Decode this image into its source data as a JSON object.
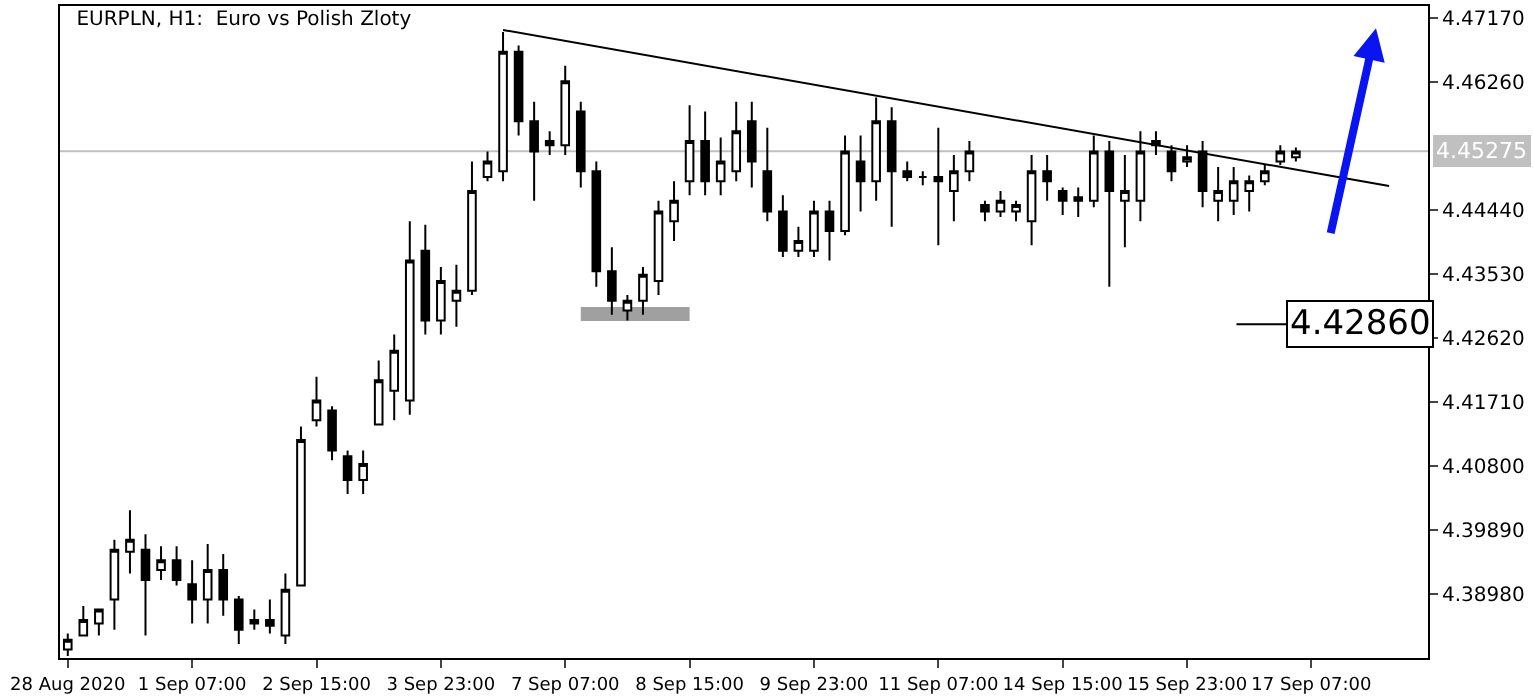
{
  "chart_data": {
    "type": "candlestick",
    "title": "EURPLN, H1:  Euro vs Polish Zloty",
    "categories": [
      "28 Aug 2020",
      null,
      null,
      null,
      null,
      null,
      null,
      null,
      "1 Sep 07:00",
      null,
      null,
      null,
      null,
      null,
      null,
      null,
      "2 Sep 15:00",
      null,
      null,
      null,
      null,
      null,
      null,
      null,
      "3 Sep 23:00",
      null,
      null,
      null,
      null,
      null,
      null,
      null,
      "7 Sep 07:00",
      null,
      null,
      null,
      null,
      null,
      null,
      null,
      "8 Sep 15:00",
      null,
      null,
      null,
      null,
      null,
      null,
      null,
      "9 Sep 23:00",
      null,
      null,
      null,
      null,
      null,
      null,
      null,
      "11 Sep 07:00",
      null,
      null,
      null,
      null,
      null,
      null,
      null,
      "14 Sep 15:00",
      null,
      null,
      null,
      null,
      null,
      null,
      null,
      "15 Sep 23:00",
      null,
      null,
      null,
      null,
      null,
      null,
      null,
      "17 Sep 07:00",
      null,
      null,
      null,
      null,
      null,
      null,
      null
    ],
    "ohlc": [
      [
        4.3819,
        4.3842,
        4.381,
        4.3833
      ],
      [
        4.3839,
        4.3881,
        4.3839,
        4.3861
      ],
      [
        4.3856,
        4.3876,
        4.3839,
        4.3876
      ],
      [
        4.389,
        4.3975,
        4.3847,
        4.3961
      ],
      [
        4.3958,
        4.4017,
        4.3927,
        4.3975
      ],
      [
        4.3961,
        4.3983,
        4.3839,
        4.3918
      ],
      [
        4.3932,
        4.3966,
        4.3918,
        4.3946
      ],
      [
        4.3946,
        4.3966,
        4.391,
        4.3918
      ],
      [
        4.3912,
        4.3946,
        4.3856,
        4.389
      ],
      [
        4.389,
        4.3969,
        4.3856,
        4.3932
      ],
      [
        4.3932,
        4.3955,
        4.3867,
        4.389
      ],
      [
        4.389,
        4.3895,
        4.3827,
        4.3847
      ],
      [
        4.3856,
        4.3876,
        4.3847,
        4.3861
      ],
      [
        4.3861,
        4.389,
        4.3842,
        4.3853
      ],
      [
        4.3839,
        4.3927,
        4.3827,
        4.3904
      ],
      [
        4.391,
        4.4136,
        4.391,
        4.4117
      ],
      [
        4.4145,
        4.4207,
        4.4136,
        4.4173
      ],
      [
        4.4159,
        4.4165,
        4.4088,
        4.4102
      ],
      [
        4.4094,
        4.4102,
        4.404,
        4.406
      ],
      [
        4.406,
        4.4102,
        4.404,
        4.4083
      ],
      [
        4.4139,
        4.423,
        4.4139,
        4.4202
      ],
      [
        4.4187,
        4.4267,
        4.4145,
        4.4244
      ],
      [
        4.4173,
        4.4428,
        4.4153,
        4.4372
      ],
      [
        4.4386,
        4.4423,
        4.4267,
        4.4287
      ],
      [
        4.4287,
        4.4363,
        4.4267,
        4.4343
      ],
      [
        4.4315,
        4.4366,
        4.4278,
        4.4329
      ],
      [
        4.4329,
        4.4513,
        4.4323,
        4.4471
      ],
      [
        4.4491,
        4.4527,
        4.4485,
        4.4513
      ],
      [
        4.4499,
        4.4697,
        4.4485,
        4.4669
      ],
      [
        4.4669,
        4.4678,
        4.455,
        4.457
      ],
      [
        4.457,
        4.4598,
        4.4457,
        4.4527
      ],
      [
        4.4542,
        4.4556,
        4.4522,
        4.4536
      ],
      [
        4.4536,
        4.4649,
        4.4522,
        4.4627
      ],
      [
        4.4584,
        4.4598,
        4.4476,
        4.4499
      ],
      [
        4.4499,
        4.4513,
        4.4335,
        4.4357
      ],
      [
        4.4357,
        4.4391,
        4.4295,
        4.4315
      ],
      [
        4.4301,
        4.4323,
        4.4287,
        4.4315
      ],
      [
        4.4315,
        4.4363,
        4.4295,
        4.4352
      ],
      [
        4.4343,
        4.4457,
        4.4323,
        4.4442
      ],
      [
        4.4428,
        4.4485,
        4.44,
        4.4457
      ],
      [
        4.4485,
        4.4593,
        4.4465,
        4.4542
      ],
      [
        4.4542,
        4.4584,
        4.4465,
        4.4485
      ],
      [
        4.4485,
        4.4547,
        4.4465,
        4.4513
      ],
      [
        4.4499,
        4.4598,
        4.4485,
        4.4556
      ],
      [
        4.457,
        4.4598,
        4.4476,
        4.4513
      ],
      [
        4.4499,
        4.4561,
        4.4428,
        4.4442
      ],
      [
        4.4442,
        4.4465,
        4.4377,
        4.4386
      ],
      [
        4.4386,
        4.442,
        4.4377,
        4.44
      ],
      [
        4.4386,
        4.4457,
        4.4377,
        4.4442
      ],
      [
        4.4442,
        4.4457,
        4.4372,
        4.4414
      ],
      [
        4.4414,
        4.455,
        4.4408,
        4.4527
      ],
      [
        4.4513,
        4.455,
        4.4442,
        4.4485
      ],
      [
        4.4485,
        4.4604,
        4.4457,
        4.457
      ],
      [
        4.457,
        4.459,
        4.442,
        4.4499
      ],
      [
        4.4499,
        4.4513,
        4.4485,
        4.4491
      ],
      [
        4.4491,
        4.4499,
        4.4479,
        4.4491
      ],
      [
        4.4491,
        4.4561,
        4.4394,
        4.4485
      ],
      [
        4.4471,
        4.4522,
        4.4428,
        4.4499
      ],
      [
        4.4499,
        4.4542,
        4.4485,
        4.4527
      ],
      [
        4.4451,
        4.4457,
        4.4428,
        4.4442
      ],
      [
        4.4442,
        4.4471,
        4.4434,
        4.4457
      ],
      [
        4.4442,
        4.4457,
        4.4428,
        4.4451
      ],
      [
        4.4428,
        4.4522,
        4.4394,
        4.4499
      ],
      [
        4.4499,
        4.4522,
        4.4457,
        4.4485
      ],
      [
        4.4471,
        4.4476,
        4.4437,
        4.4457
      ],
      [
        4.4457,
        4.4476,
        4.4434,
        4.4462
      ],
      [
        4.4457,
        4.455,
        4.4448,
        4.4527
      ],
      [
        4.4527,
        4.4542,
        4.4335,
        4.4471
      ],
      [
        4.4457,
        4.4522,
        4.4391,
        4.4471
      ],
      [
        4.4457,
        4.4556,
        4.4428,
        4.4527
      ],
      [
        4.4542,
        4.4556,
        4.4522,
        4.4536
      ],
      [
        4.4527,
        4.4536,
        4.4485,
        4.4499
      ],
      [
        4.4513,
        4.4536,
        4.4505,
        4.4519
      ],
      [
        4.4527,
        4.4542,
        4.4448,
        4.4471
      ],
      [
        4.4457,
        4.4505,
        4.4428,
        4.4471
      ],
      [
        4.4457,
        4.4505,
        4.4437,
        4.4485
      ],
      [
        4.4471,
        4.4493,
        4.4442,
        4.4485
      ],
      [
        4.4485,
        4.4508,
        4.4479,
        4.4499
      ],
      [
        4.4513,
        4.4536,
        4.4508,
        4.4527
      ],
      [
        4.4519,
        4.4533,
        4.4513,
        4.4527
      ],
      null,
      null,
      null,
      null,
      null,
      null,
      null,
      null
    ],
    "color": "#000000",
    "series": [
      {
        "type": "line",
        "color": "#000000",
        "values": [
          null,
          null,
          null,
          null,
          null,
          null,
          null,
          null,
          null,
          null,
          null,
          null,
          null,
          null,
          null,
          null,
          null,
          null,
          null,
          null,
          null,
          null,
          null,
          null,
          null,
          null,
          null,
          null,
          4.47,
          null,
          null,
          null,
          null,
          null,
          null,
          null,
          null,
          null,
          null,
          null,
          null,
          null,
          null,
          null,
          null,
          null,
          null,
          null,
          null,
          null,
          null,
          null,
          null,
          null,
          null,
          null,
          null,
          null,
          null,
          null,
          null,
          null,
          null,
          null,
          null,
          null,
          null,
          null,
          null,
          null,
          null,
          null,
          null,
          null,
          null,
          null,
          null,
          null,
          null,
          null,
          null,
          null,
          null,
          null,
          null,
          4.4478,
          null,
          null
        ]
      },
      {
        "type": "line",
        "color": "#a0a0a0",
        "values": [
          null,
          null,
          null,
          null,
          null,
          null,
          null,
          null,
          null,
          null,
          null,
          null,
          null,
          null,
          null,
          null,
          null,
          null,
          null,
          null,
          null,
          null,
          null,
          null,
          null,
          null,
          null,
          null,
          null,
          null,
          null,
          null,
          null,
          4.4296,
          4.4296,
          4.4296,
          4.4296,
          4.4296,
          4.4296,
          4.4296,
          4.4296,
          null,
          null,
          null,
          null,
          null,
          null,
          null,
          null,
          null,
          null,
          null,
          null,
          null,
          null,
          null,
          null,
          null,
          null,
          null,
          null,
          null,
          null,
          null,
          null,
          null,
          null,
          null,
          null,
          null,
          null,
          null,
          null,
          null,
          null,
          null,
          null,
          null,
          null,
          null,
          null,
          null,
          null,
          null,
          null,
          null,
          null,
          null
        ]
      }
    ],
    "ref_lines": [
      {
        "axis": "y",
        "value": 4.45275,
        "label": "4.45275",
        "color": "#c0c0c0"
      }
    ],
    "annotations": [
      "4.42860"
    ],
    "ylim": [
      4.3807,
      4.4734
    ],
    "yticks": [
      {
        "value": 4.4717,
        "label": "4.47170"
      },
      {
        "value": 4.4626,
        "label": "4.46260"
      },
      {
        "value": 4.4444,
        "label": "4.44440"
      },
      {
        "value": 4.4353,
        "label": "4.43530"
      },
      {
        "value": 4.4262,
        "label": "4.42620"
      },
      {
        "value": 4.4171,
        "label": "4.41710"
      },
      {
        "value": 4.408,
        "label": "4.40800"
      },
      {
        "value": 4.3989,
        "label": "4.39890"
      },
      {
        "value": 4.3898,
        "label": "4.38980"
      }
    ],
    "grid": false
  }
}
